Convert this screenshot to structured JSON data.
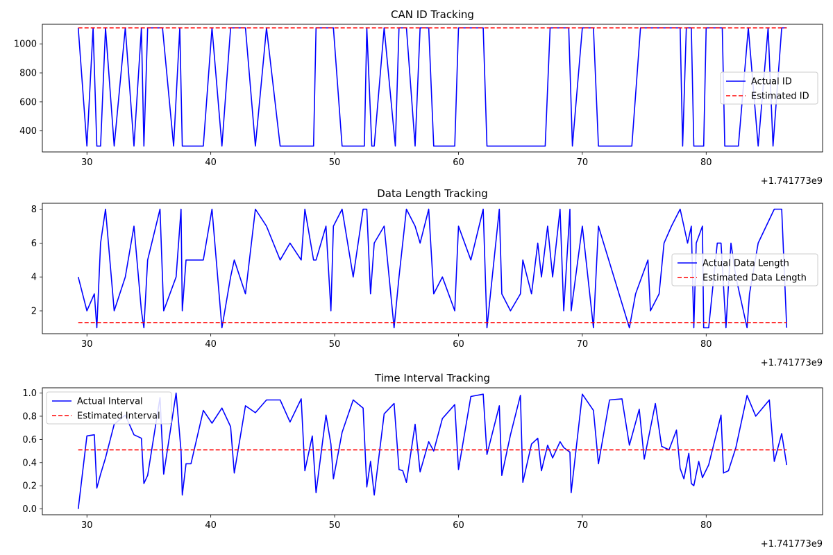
{
  "offset_text": "+1.741773e9",
  "colors": {
    "actual": "#0000ff",
    "estimated": "#ff0000"
  },
  "chart_data": [
    {
      "type": "line",
      "title": "CAN ID Tracking",
      "xlim": [
        26.4,
        89.4
      ],
      "ylim": [
        255,
        1135
      ],
      "xticks": [
        30,
        40,
        50,
        60,
        70,
        80
      ],
      "yticks": [
        400,
        600,
        800,
        1000
      ],
      "legend_position": "center-right",
      "series": [
        {
          "name": "Actual ID",
          "style": "solid",
          "color": "#0000ff",
          "x": [
            29.3,
            30.0,
            30.5,
            30.8,
            31.1,
            31.5,
            32.2,
            33.1,
            33.8,
            34.4,
            34.6,
            34.9,
            35.2,
            36.1,
            37.0,
            37.5,
            37.7,
            39.4,
            40.1,
            40.9,
            41.6,
            42.8,
            43.6,
            44.5,
            45.6,
            48.3,
            48.5,
            49.9,
            50.6,
            52.4,
            52.6,
            53.0,
            53.2,
            54.0,
            54.9,
            55.2,
            55.8,
            56.5,
            56.9,
            57.6,
            58.0,
            59.7,
            60.0,
            62.0,
            62.3,
            67.0,
            67.4,
            68.9,
            69.2,
            70.0,
            70.9,
            71.3,
            74.0,
            74.7,
            77.9,
            78.1,
            78.4,
            78.8,
            79.0,
            79.8,
            80.0,
            81.3,
            81.5,
            82.6,
            83.4,
            84.2,
            85.0,
            85.4,
            86.1,
            86.5
          ],
          "values": [
            1110,
            295,
            1110,
            295,
            295,
            1110,
            295,
            1110,
            295,
            1110,
            295,
            1110,
            1110,
            1110,
            295,
            1110,
            295,
            295,
            1110,
            295,
            1110,
            1110,
            295,
            1110,
            295,
            295,
            1110,
            1110,
            295,
            295,
            1110,
            295,
            295,
            1110,
            295,
            1110,
            1110,
            295,
            1110,
            1110,
            295,
            295,
            1110,
            1110,
            295,
            295,
            1110,
            1110,
            295,
            1110,
            1110,
            295,
            295,
            1110,
            1110,
            295,
            1110,
            1110,
            295,
            295,
            1110,
            1110,
            295,
            295,
            1110,
            295,
            1110,
            295,
            1110,
            1110
          ]
        },
        {
          "name": "Estimated ID",
          "style": "dashed",
          "color": "#ff0000",
          "x": [
            29.3,
            86.5
          ],
          "values": [
            1110,
            1110
          ]
        }
      ]
    },
    {
      "type": "line",
      "title": "Data Length Tracking",
      "xlim": [
        26.4,
        89.4
      ],
      "ylim": [
        0.65,
        8.35
      ],
      "xticks": [
        30,
        40,
        50,
        60,
        70,
        80
      ],
      "yticks": [
        2,
        4,
        6,
        8
      ],
      "legend_position": "center-right",
      "series": [
        {
          "name": "Actual Data Length",
          "style": "solid",
          "color": "#0000ff",
          "x": [
            29.3,
            30.0,
            30.6,
            30.8,
            31.1,
            31.5,
            32.2,
            33.1,
            33.8,
            34.4,
            34.6,
            34.9,
            35.9,
            36.2,
            37.2,
            37.6,
            37.7,
            38.0,
            39.4,
            40.1,
            40.9,
            41.6,
            41.9,
            42.8,
            43.6,
            44.5,
            45.6,
            46.4,
            47.3,
            47.6,
            48.3,
            48.5,
            49.3,
            49.7,
            49.9,
            50.6,
            51.5,
            52.3,
            52.6,
            52.9,
            53.2,
            54.0,
            54.8,
            55.2,
            55.8,
            56.5,
            56.9,
            57.6,
            58.0,
            58.7,
            59.7,
            60.0,
            61.0,
            62.0,
            62.3,
            63.3,
            63.5,
            64.2,
            65.0,
            65.2,
            65.9,
            66.4,
            66.7,
            67.2,
            67.6,
            68.2,
            68.5,
            69.0,
            69.1,
            70.0,
            70.9,
            71.3,
            73.8,
            74.3,
            75.3,
            75.5,
            76.2,
            76.6,
            77.2,
            77.9,
            78.2,
            78.5,
            78.8,
            79.0,
            79.2,
            79.7,
            79.8,
            80.2,
            80.9,
            81.2,
            81.6,
            82.0,
            82.4,
            83.3,
            83.5,
            84.2,
            85.5,
            86.1,
            86.5
          ],
          "values": [
            4,
            2,
            3,
            1,
            6,
            8,
            2,
            4,
            7,
            2,
            1,
            5,
            8,
            2,
            4,
            8,
            2,
            5,
            5,
            8,
            1,
            4,
            5,
            3,
            8,
            7,
            5,
            6,
            5,
            8,
            5,
            5,
            7,
            2,
            7,
            8,
            4,
            8,
            8,
            3,
            6,
            7,
            1,
            4,
            8,
            7,
            6,
            8,
            3,
            4,
            2,
            7,
            5,
            8,
            1,
            8,
            3,
            2,
            3,
            5,
            3,
            6,
            4,
            7,
            4,
            8,
            2,
            8,
            2,
            7,
            1,
            7,
            1,
            3,
            5,
            2,
            3,
            6,
            7,
            8,
            7,
            6,
            7,
            1,
            6,
            7,
            1,
            1,
            6,
            6,
            1,
            6,
            4,
            1,
            3,
            6,
            8,
            8,
            1
          ]
        },
        {
          "name": "Estimated Data Length",
          "style": "dashed",
          "color": "#ff0000",
          "x": [
            29.3,
            86.5
          ],
          "values": [
            1.3,
            1.3
          ]
        }
      ]
    },
    {
      "type": "line",
      "title": "Time Interval Tracking",
      "xlim": [
        26.4,
        89.4
      ],
      "ylim": [
        -0.05,
        1.045
      ],
      "xticks": [
        30,
        40,
        50,
        60,
        70,
        80
      ],
      "yticks": [
        0.0,
        0.2,
        0.4,
        0.6,
        0.8,
        1.0
      ],
      "ytick_labels": [
        "0.0",
        "0.2",
        "0.4",
        "0.6",
        "0.8",
        "1.0"
      ],
      "legend_position": "top-left",
      "series": [
        {
          "name": "Actual Interval",
          "style": "solid",
          "color": "#0000ff",
          "x": [
            29.3,
            30.0,
            30.6,
            30.8,
            31.1,
            31.5,
            32.2,
            33.1,
            33.8,
            34.4,
            34.6,
            34.9,
            35.9,
            36.2,
            37.2,
            37.6,
            37.7,
            38.0,
            38.4,
            39.4,
            40.1,
            40.9,
            41.6,
            41.9,
            42.8,
            43.6,
            44.5,
            45.6,
            46.4,
            47.3,
            47.6,
            48.2,
            48.5,
            49.3,
            49.7,
            49.9,
            50.6,
            51.5,
            52.3,
            52.6,
            52.9,
            53.2,
            54.0,
            54.8,
            55.2,
            55.5,
            55.8,
            56.5,
            56.9,
            57.6,
            58.0,
            58.7,
            59.7,
            60.0,
            61.0,
            62.0,
            62.3,
            63.3,
            63.5,
            64.2,
            65.0,
            65.2,
            65.9,
            66.4,
            66.7,
            67.2,
            67.6,
            68.2,
            68.5,
            69.0,
            69.1,
            70.0,
            70.9,
            71.3,
            72.2,
            73.2,
            73.8,
            74.6,
            75.0,
            75.9,
            76.4,
            77.0,
            77.6,
            77.9,
            78.2,
            78.6,
            78.8,
            79.0,
            79.4,
            79.7,
            80.2,
            81.2,
            81.4,
            81.8,
            82.4,
            83.3,
            84.0,
            85.1,
            85.5,
            86.1,
            86.5
          ],
          "values": [
            0.0,
            0.63,
            0.64,
            0.18,
            0.3,
            0.44,
            0.73,
            0.81,
            0.64,
            0.61,
            0.22,
            0.29,
            0.96,
            0.3,
            1.0,
            0.5,
            0.12,
            0.39,
            0.39,
            0.85,
            0.74,
            0.87,
            0.71,
            0.31,
            0.89,
            0.83,
            0.94,
            0.94,
            0.75,
            0.95,
            0.33,
            0.63,
            0.14,
            0.81,
            0.56,
            0.26,
            0.66,
            0.94,
            0.87,
            0.19,
            0.41,
            0.12,
            0.82,
            0.91,
            0.34,
            0.33,
            0.23,
            0.73,
            0.32,
            0.58,
            0.5,
            0.78,
            0.9,
            0.34,
            0.97,
            0.99,
            0.47,
            0.89,
            0.29,
            0.64,
            0.98,
            0.23,
            0.56,
            0.61,
            0.33,
            0.55,
            0.44,
            0.58,
            0.53,
            0.49,
            0.14,
            0.99,
            0.85,
            0.39,
            0.94,
            0.95,
            0.55,
            0.86,
            0.43,
            0.91,
            0.54,
            0.51,
            0.68,
            0.35,
            0.26,
            0.48,
            0.22,
            0.2,
            0.41,
            0.27,
            0.38,
            0.81,
            0.31,
            0.33,
            0.53,
            0.98,
            0.8,
            0.94,
            0.41,
            0.65,
            0.38
          ]
        },
        {
          "name": "Estimated Interval",
          "style": "dashed",
          "color": "#ff0000",
          "x": [
            29.3,
            86.5
          ],
          "values": [
            0.51,
            0.51
          ]
        }
      ]
    }
  ]
}
